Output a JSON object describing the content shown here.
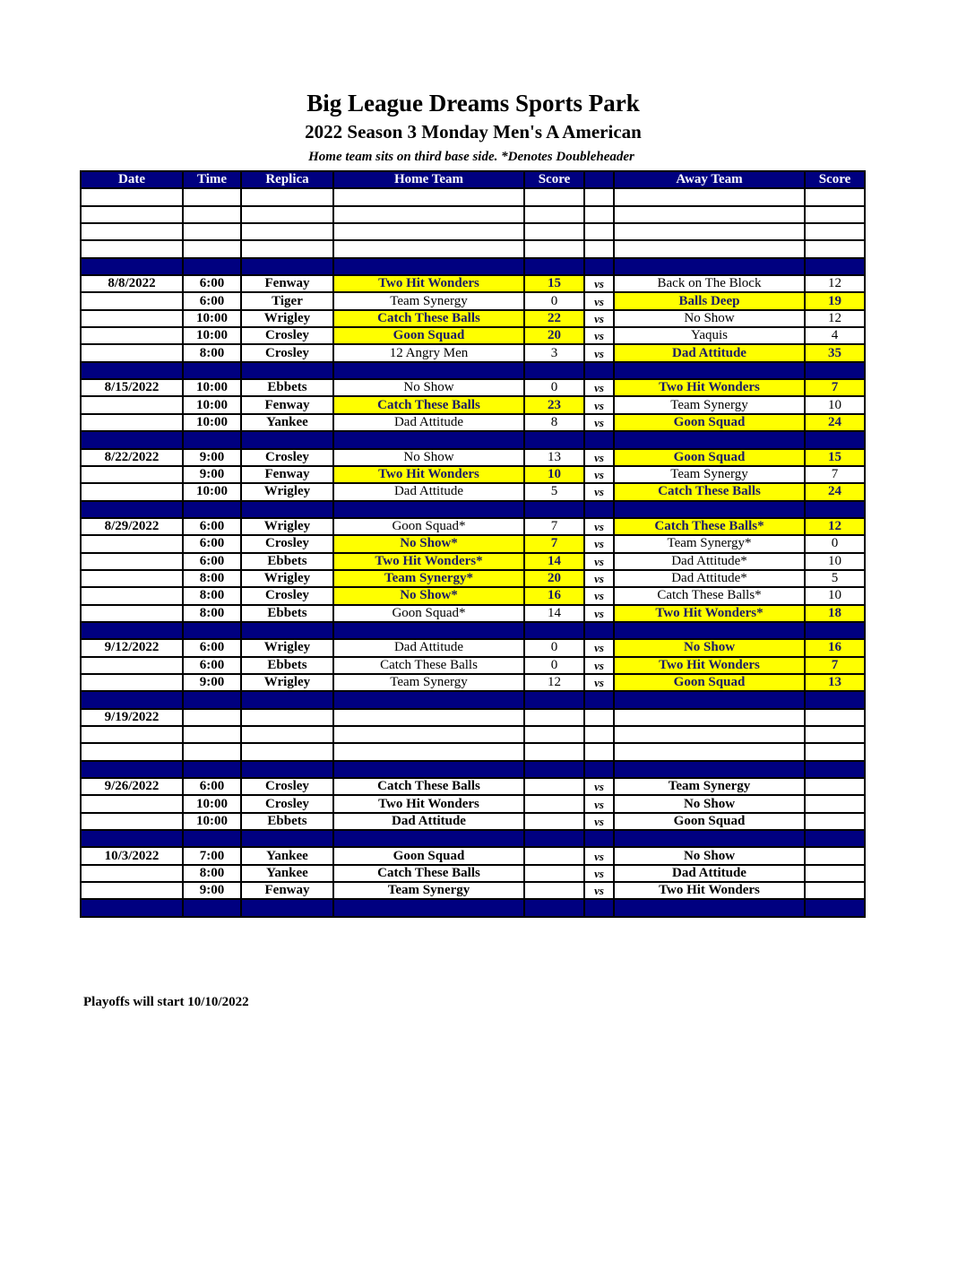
{
  "title": "Big League Dreams Sports Park",
  "subtitle": "2022 Season 3 Monday Men's A American",
  "note": "Home team sits on third base side.  *Denotes Doubleheader",
  "columns": [
    "Date",
    "Time",
    "Replica",
    "Home Team",
    "Score",
    "",
    "Away Team",
    "Score"
  ],
  "colors": {
    "header": "#000080",
    "winner_highlight": "#ffff00"
  },
  "rows": [
    {
      "type": "blank"
    },
    {
      "type": "blank"
    },
    {
      "type": "blank"
    },
    {
      "type": "blank"
    },
    {
      "type": "sep"
    },
    {
      "date": "8/8/2022",
      "time": "6:00",
      "field": "Fenway",
      "home": "Two Hit Wonders",
      "hs": "15",
      "vs": "vs",
      "away": "Back on The Block",
      "as": "12",
      "winner": "home"
    },
    {
      "date": "",
      "time": "6:00",
      "field": "Tiger",
      "home": "Team Synergy",
      "hs": "0",
      "vs": "vs",
      "away": "Balls Deep",
      "as": "19",
      "winner": "away"
    },
    {
      "date": "",
      "time": "10:00",
      "field": "Wrigley",
      "home": "Catch These Balls",
      "hs": "22",
      "vs": "vs",
      "away": "No Show",
      "as": "12",
      "winner": "home"
    },
    {
      "date": "",
      "time": "10:00",
      "field": "Crosley",
      "home": "Goon Squad",
      "hs": "20",
      "vs": "vs",
      "away": "Yaquis",
      "as": "4",
      "winner": "home"
    },
    {
      "date": "",
      "time": "8:00",
      "field": "Crosley",
      "home": "12 Angry Men",
      "hs": "3",
      "vs": "vs",
      "away": "Dad Attitude",
      "as": "35",
      "winner": "away"
    },
    {
      "type": "sep"
    },
    {
      "date": "8/15/2022",
      "time": "10:00",
      "field": "Ebbets",
      "home": "No Show",
      "hs": "0",
      "vs": "vs",
      "away": "Two Hit Wonders",
      "as": "7",
      "winner": "away"
    },
    {
      "date": "",
      "time": "10:00",
      "field": "Fenway",
      "home": "Catch These Balls",
      "hs": "23",
      "vs": "vs",
      "away": "Team Synergy",
      "as": "10",
      "winner": "home"
    },
    {
      "date": "",
      "time": "10:00",
      "field": "Yankee",
      "home": "Dad Attitude",
      "hs": "8",
      "vs": "vs",
      "away": "Goon Squad",
      "as": "24",
      "winner": "away"
    },
    {
      "type": "sep"
    },
    {
      "date": "8/22/2022",
      "time": "9:00",
      "field": "Crosley",
      "home": "No Show",
      "hs": "13",
      "vs": "vs",
      "away": "Goon Squad",
      "as": "15",
      "winner": "away"
    },
    {
      "date": "",
      "time": "9:00",
      "field": "Fenway",
      "home": "Two Hit Wonders",
      "hs": "10",
      "vs": "vs",
      "away": "Team Synergy",
      "as": "7",
      "winner": "home"
    },
    {
      "date": "",
      "time": "10:00",
      "field": "Wrigley",
      "home": "Dad Attitude",
      "hs": "5",
      "vs": "vs",
      "away": "Catch These Balls",
      "as": "24",
      "winner": "away"
    },
    {
      "type": "sep"
    },
    {
      "date": "8/29/2022",
      "time": "6:00",
      "field": "Wrigley",
      "home": "Goon Squad*",
      "hs": "7",
      "vs": "vs",
      "away": "Catch These Balls*",
      "as": "12",
      "winner": "away"
    },
    {
      "date": "",
      "time": "6:00",
      "field": "Crosley",
      "home": "No Show*",
      "hs": "7",
      "vs": "vs",
      "away": "Team Synergy*",
      "as": "0",
      "winner": "home"
    },
    {
      "date": "",
      "time": "6:00",
      "field": "Ebbets",
      "home": "Two Hit Wonders*",
      "hs": "14",
      "vs": "vs",
      "away": "Dad Attitude*",
      "as": "10",
      "winner": "home"
    },
    {
      "date": "",
      "time": "8:00",
      "field": "Wrigley",
      "home": "Team Synergy*",
      "hs": "20",
      "vs": "vs",
      "away": "Dad Attitude*",
      "as": "5",
      "winner": "home"
    },
    {
      "date": "",
      "time": "8:00",
      "field": "Crosley",
      "home": "No Show*",
      "hs": "16",
      "vs": "vs",
      "away": "Catch These Balls*",
      "as": "10",
      "winner": "home"
    },
    {
      "date": "",
      "time": "8:00",
      "field": "Ebbets",
      "home": "Goon Squad*",
      "hs": "14",
      "vs": "vs",
      "away": "Two Hit Wonders*",
      "as": "18",
      "winner": "away"
    },
    {
      "type": "sep"
    },
    {
      "date": "9/12/2022",
      "time": "6:00",
      "field": "Wrigley",
      "home": "Dad Attitude",
      "hs": "0",
      "vs": "vs",
      "away": "No Show",
      "as": "16",
      "winner": "away"
    },
    {
      "date": "",
      "time": "6:00",
      "field": "Ebbets",
      "home": "Catch These Balls",
      "hs": "0",
      "vs": "vs",
      "away": "Two Hit Wonders",
      "as": "7",
      "winner": "away"
    },
    {
      "date": "",
      "time": "9:00",
      "field": "Wrigley",
      "home": "Team Synergy",
      "hs": "12",
      "vs": "vs",
      "away": "Goon Squad",
      "as": "13",
      "winner": "away"
    },
    {
      "type": "sep"
    },
    {
      "date": "9/19/2022",
      "time": "",
      "field": "",
      "home": "",
      "hs": "",
      "vs": "",
      "away": "",
      "as": ""
    },
    {
      "type": "blank"
    },
    {
      "type": "blank"
    },
    {
      "type": "sep"
    },
    {
      "date": "9/26/2022",
      "time": "6:00",
      "field": "Crosley",
      "home": "Catch These Balls",
      "hs": "",
      "vs": "vs",
      "away": "Team Synergy",
      "as": "",
      "bold": true
    },
    {
      "date": "",
      "time": "10:00",
      "field": "Crosley",
      "home": "Two Hit Wonders",
      "hs": "",
      "vs": "vs",
      "away": "No Show",
      "as": "",
      "bold": true
    },
    {
      "date": "",
      "time": "10:00",
      "field": "Ebbets",
      "home": "Dad Attitude",
      "hs": "",
      "vs": "vs",
      "away": "Goon Squad",
      "as": "",
      "bold": true
    },
    {
      "type": "sep"
    },
    {
      "date": "10/3/2022",
      "time": "7:00",
      "field": "Yankee",
      "home": "Goon Squad",
      "hs": "",
      "vs": "vs",
      "away": "No Show",
      "as": "",
      "bold": true
    },
    {
      "date": "",
      "time": "8:00",
      "field": "Yankee",
      "home": "Catch These Balls",
      "hs": "",
      "vs": "vs",
      "away": "Dad Attitude",
      "as": "",
      "bold": true
    },
    {
      "date": "",
      "time": "9:00",
      "field": "Fenway",
      "home": "Team Synergy",
      "hs": "",
      "vs": "vs",
      "away": "Two Hit Wonders",
      "as": "",
      "bold": true
    },
    {
      "type": "sep"
    }
  ],
  "footer": "Playoffs will start 10/10/2022"
}
